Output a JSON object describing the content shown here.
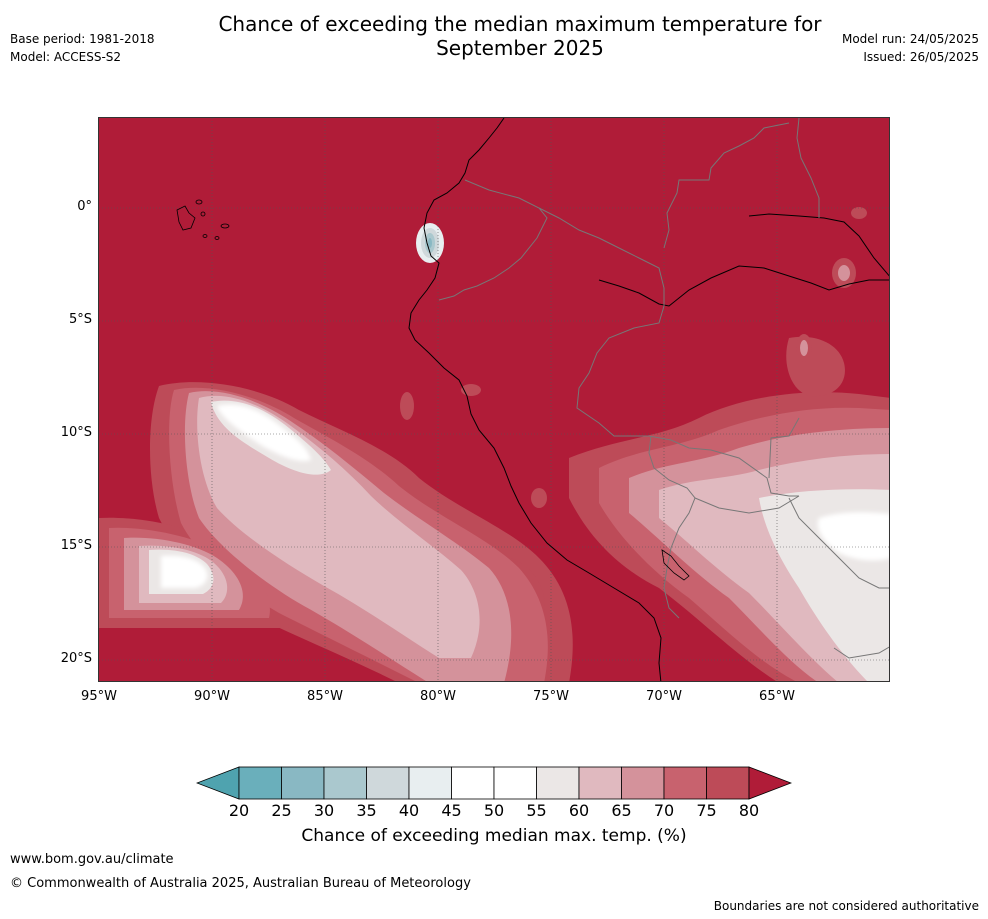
{
  "header": {
    "title_line1": "Chance of exceeding the median maximum temperature for",
    "title_line2": "September 2025",
    "base_period": "Base period: 1981-2018",
    "model": "Model: ACCESS-S2",
    "model_run": "Model run: 24/05/2025",
    "issued": "Issued: 26/05/2025"
  },
  "map": {
    "lat_labels": [
      "0°",
      "5°S",
      "10°S",
      "15°S",
      "20°S"
    ],
    "lon_labels": [
      "95°W",
      "90°W",
      "85°W",
      "80°W",
      "75°W",
      "70°W",
      "65°W"
    ]
  },
  "colorbar": {
    "ticks": [
      "20",
      "25",
      "30",
      "35",
      "40",
      "45",
      "50",
      "55",
      "60",
      "65",
      "70",
      "75",
      "80"
    ],
    "colors": [
      "#4fa3af",
      "#6aafbb",
      "#89b8c3",
      "#aac8ce",
      "#cfd8db",
      "#e8eef0",
      "#ffffff",
      "#ffffff",
      "#ebe7e6",
      "#e0b9bf",
      "#d4929b",
      "#c8626e",
      "#bd4b58",
      "#b01c38"
    ],
    "label": "Chance of exceeding median max. temp. (%)"
  },
  "footer": {
    "website": "www.bom.gov.au/climate",
    "copyright": "© Commonwealth of Australia 2025, Australian Bureau of Meteorology",
    "disclaimer": "Boundaries are not considered authoritative"
  }
}
